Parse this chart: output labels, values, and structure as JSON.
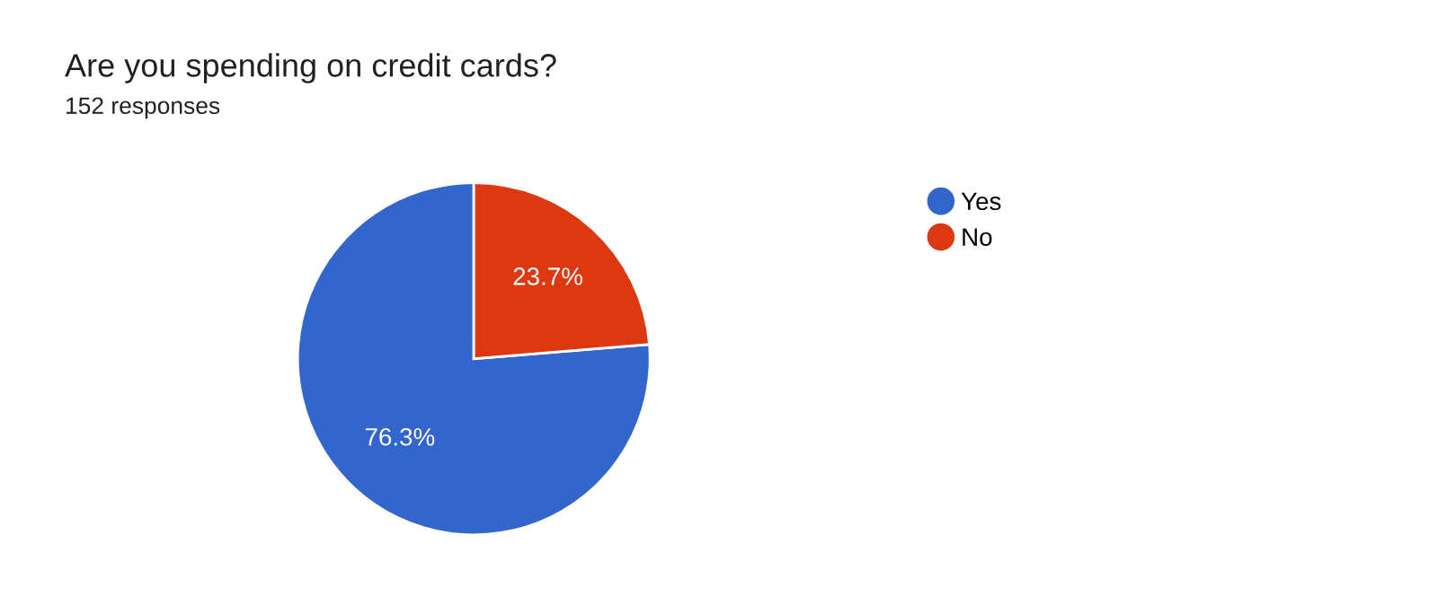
{
  "chart_data": {
    "type": "pie",
    "title": "Are you spending on credit cards?",
    "subtitle": "152 responses",
    "categories": [
      "Yes",
      "No"
    ],
    "values": [
      76.3,
      23.7
    ],
    "colors": [
      "#3366cc",
      "#dc3912"
    ],
    "value_labels": [
      "76.3%",
      "23.7%"
    ],
    "legend": "right"
  }
}
